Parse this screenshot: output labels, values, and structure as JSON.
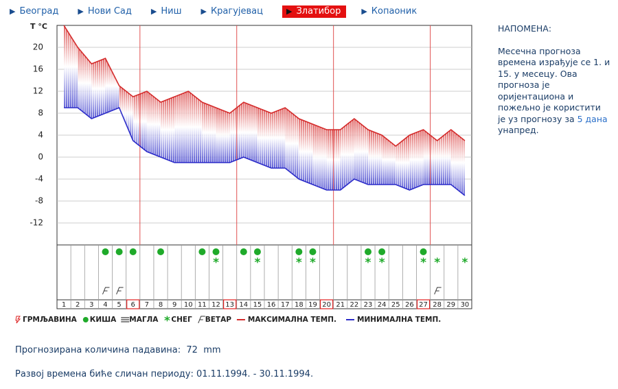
{
  "nav": [
    {
      "label": "Београд"
    },
    {
      "label": "Нови Сад"
    },
    {
      "label": "Ниш"
    },
    {
      "label": "Крагујевац"
    },
    {
      "label": "Златибор",
      "active": true
    },
    {
      "label": "Копаоник"
    }
  ],
  "chart_data": {
    "type": "line",
    "ylabel": "T °C",
    "categories": [
      "1",
      "2",
      "3",
      "4",
      "5",
      "6",
      "7",
      "8",
      "9",
      "10",
      "11",
      "12",
      "13",
      "14",
      "15",
      "16",
      "17",
      "18",
      "19",
      "20",
      "21",
      "22",
      "23",
      "24",
      "25",
      "26",
      "27",
      "28",
      "29",
      "30"
    ],
    "series": [
      {
        "name": "МАКСИМАЛНА ТЕМП.",
        "color": "#d42a2a",
        "values": [
          24,
          20,
          17,
          18,
          13,
          11,
          12,
          10,
          11,
          12,
          10,
          9,
          8,
          10,
          9,
          8,
          9,
          7,
          6,
          5,
          5,
          7,
          5,
          4,
          2,
          4,
          5,
          3,
          5,
          3
        ]
      },
      {
        "name": "МИНИМАЛНА ТЕМП.",
        "color": "#2a2ac8",
        "values": [
          9,
          9,
          7,
          8,
          9,
          3,
          1,
          0,
          -1,
          -1,
          -1,
          -1,
          -1,
          0,
          -1,
          -2,
          -2,
          -4,
          -5,
          -6,
          -6,
          -4,
          -5,
          -5,
          -5,
          -6,
          -5,
          -5,
          -5,
          -7
        ]
      }
    ],
    "ylim": [
      -16,
      24
    ],
    "yticks": [
      20,
      16,
      12,
      8,
      4,
      0,
      -4,
      -8,
      -12
    ],
    "grid": true,
    "highlight_days": [
      6,
      13,
      20,
      27
    ],
    "symbols": {
      "thunder": {
        "name": "ГРМЉАВИНА",
        "days": []
      },
      "rain": {
        "name": "КИША",
        "days": [
          4,
          5,
          6,
          8,
          11,
          12,
          14,
          15,
          18,
          19,
          23,
          24,
          27
        ]
      },
      "fog": {
        "name": "МАГЛА",
        "days": []
      },
      "snow": {
        "name": "СНЕГ",
        "days": [
          12,
          15,
          18,
          19,
          23,
          24,
          27,
          28,
          30
        ]
      },
      "wind": {
        "name": "ВЕТАР",
        "days": [
          4,
          5,
          28
        ]
      }
    }
  },
  "note": {
    "title": "НАПОМЕНА:",
    "text_before": "Месечна прогноза времена израђује се 1. и 15. у месецу. Ова прогноза је оријентациона и пожељно је користити је уз прогнозу за",
    "link": "5 дана",
    "text_after": "унапред."
  },
  "precipitation": {
    "label": "Прогнозирана количина падавина:",
    "value": 72,
    "unit": "mm"
  },
  "similar_period": "Развој времена биће сличан периоду: 01.11.1994. - 30.11.1994."
}
